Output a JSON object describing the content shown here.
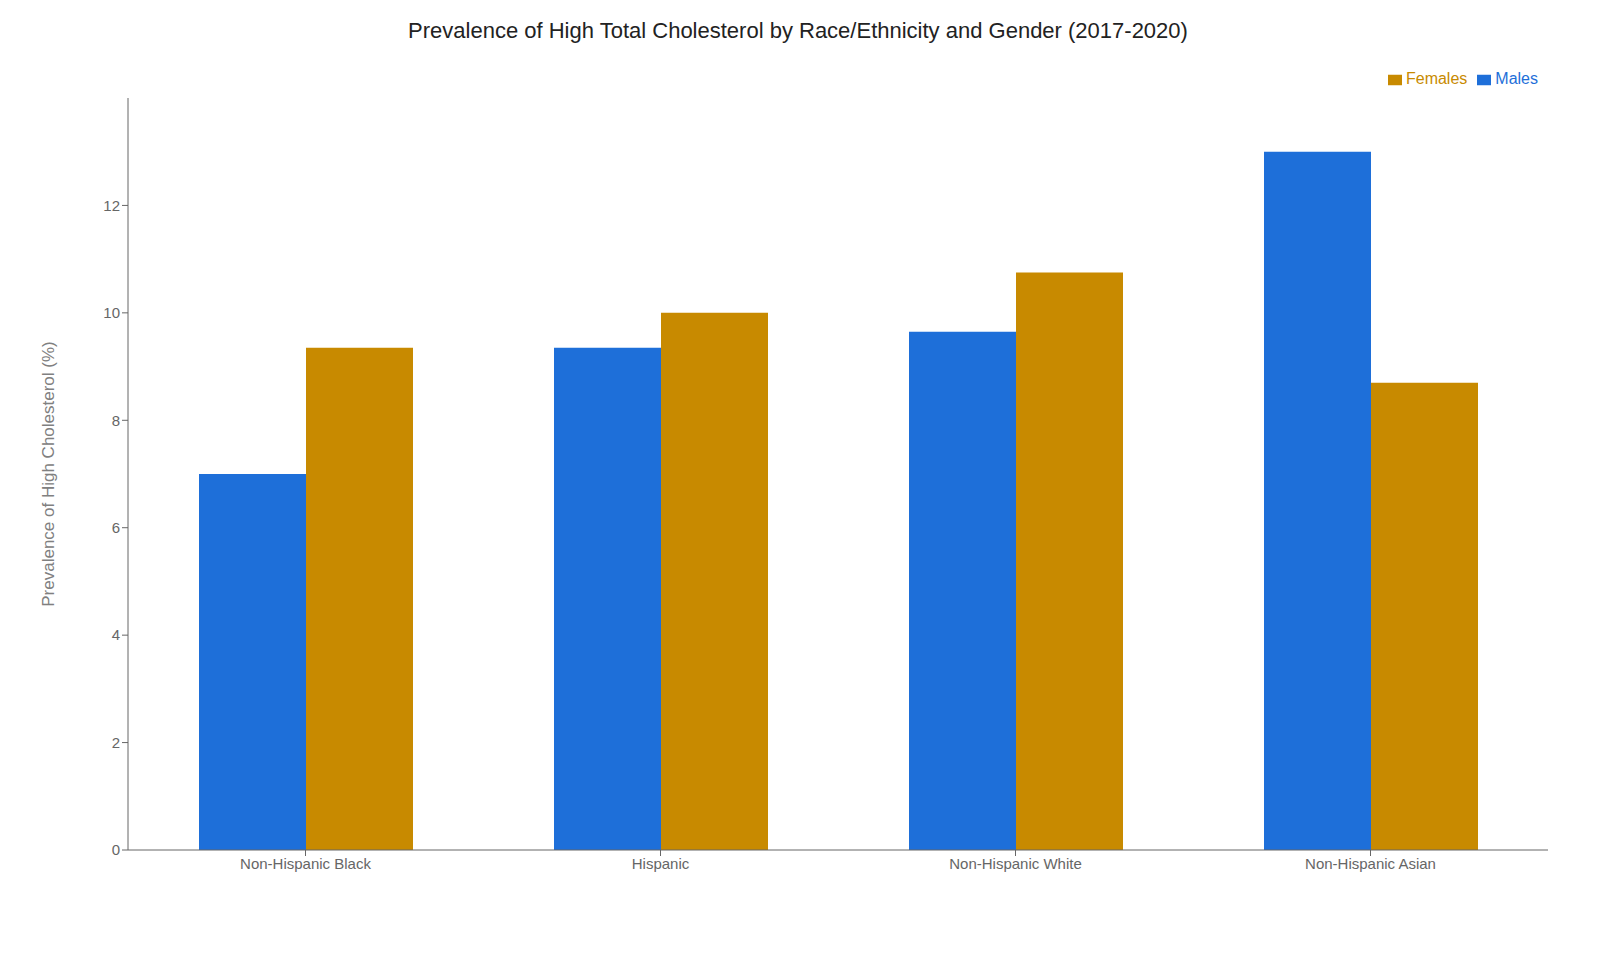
{
  "chart_data": {
    "type": "bar",
    "title": "Prevalence of High Total Cholesterol by Race/Ethnicity and Gender (2017-2020)",
    "ylabel": "Prevalence of High Cholesterol (%)",
    "categories": [
      "Non-Hispanic Black",
      "Hispanic",
      "Non-Hispanic White",
      "Non-Hispanic Asian"
    ],
    "series": [
      {
        "name": "Males",
        "color": "#1E6FD9",
        "values": [
          7.0,
          9.35,
          9.65,
          13.0
        ]
      },
      {
        "name": "Females",
        "color": "#C88A00",
        "values": [
          9.35,
          10.0,
          10.75,
          8.7
        ]
      }
    ],
    "ylim": [
      0,
      14
    ],
    "yticks": [
      0,
      2,
      4,
      6,
      8,
      10,
      12
    ],
    "grid": false,
    "legend": "upper right"
  }
}
